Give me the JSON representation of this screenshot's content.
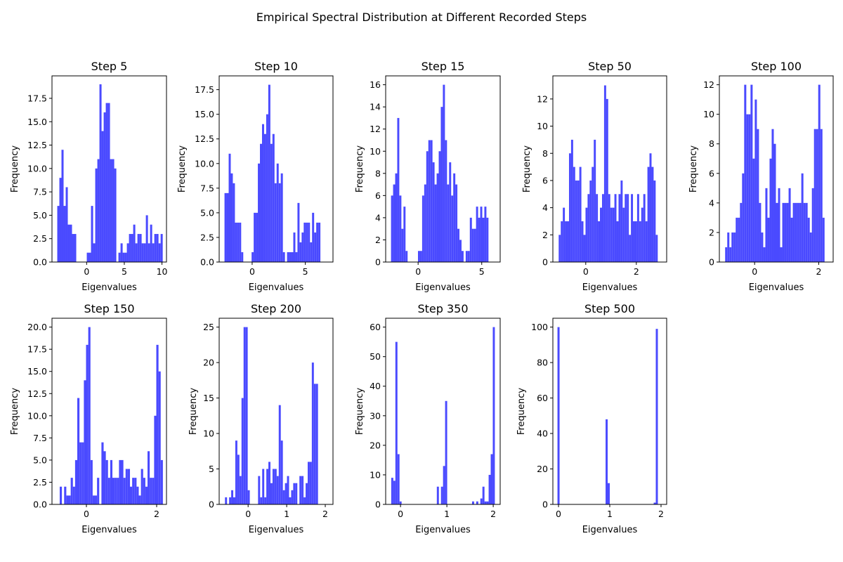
{
  "figure": {
    "title": "Empirical Spectral Distribution at Different Recorded Steps",
    "bar_color": "#4a4aff"
  },
  "chart_data": [
    {
      "type": "bar",
      "title": "Step 5",
      "xlabel": "Eigenvalues",
      "ylabel": "Frequency",
      "xlim": [
        -4.6,
        10.6
      ],
      "ylim": [
        0,
        19.9
      ],
      "xticks": [
        0,
        5,
        10
      ],
      "xtick_labels": [
        "0",
        "5",
        "10"
      ],
      "yticks": [
        0,
        2.5,
        5,
        7.5,
        10,
        12.5,
        15,
        17.5
      ],
      "ytick_labels": [
        "0.0",
        "2.5",
        "5.0",
        "7.5",
        "10.0",
        "12.5",
        "15.0",
        "17.5"
      ],
      "bin_start": -3.9,
      "bin_width": 0.28,
      "counts": [
        6,
        9,
        12,
        6,
        8,
        4,
        4,
        3,
        3,
        0,
        0,
        0,
        0,
        0,
        1,
        1,
        6,
        2,
        10,
        11,
        19,
        14,
        16,
        17,
        17,
        11,
        11,
        10,
        0,
        1,
        2,
        1,
        1,
        2,
        3,
        3,
        4,
        2,
        3,
        3,
        2,
        2,
        5,
        2,
        4,
        2,
        3,
        3,
        2,
        3
      ]
    },
    {
      "type": "bar",
      "title": "Step 10",
      "xlabel": "Eigenvalues",
      "ylabel": "Frequency",
      "xlim": [
        -3.1,
        7.6
      ],
      "ylim": [
        0,
        18.9
      ],
      "xticks": [
        0,
        5
      ],
      "xtick_labels": [
        "0",
        "5"
      ],
      "yticks": [
        0,
        2.5,
        5,
        7.5,
        10,
        12.5,
        15,
        17.5
      ],
      "ytick_labels": [
        "0.0",
        "2.5",
        "5.0",
        "7.5",
        "10.0",
        "12.5",
        "15.0",
        "17.5"
      ],
      "bin_start": -2.6,
      "bin_width": 0.196,
      "counts": [
        7,
        7,
        11,
        9,
        8,
        4,
        4,
        4,
        1,
        0,
        0,
        0,
        0,
        1,
        5,
        5,
        10,
        12,
        14,
        13,
        15,
        18,
        12,
        13,
        8,
        10,
        8,
        9,
        1,
        0,
        1,
        1,
        1,
        3,
        1,
        6,
        2,
        3,
        4,
        4,
        4,
        2,
        5,
        3,
        4,
        4
      ]
    },
    {
      "type": "bar",
      "title": "Step 15",
      "xlabel": "Eigenvalues",
      "ylabel": "Frequency",
      "xlim": [
        -2.55,
        6.45
      ],
      "ylim": [
        0,
        16.8
      ],
      "xticks": [
        0,
        5
      ],
      "xtick_labels": [
        "0",
        "5"
      ],
      "yticks": [
        0,
        2,
        4,
        6,
        8,
        10,
        12,
        14,
        16
      ],
      "ytick_labels": [
        "0",
        "2",
        "4",
        "6",
        "8",
        "10",
        "12",
        "14",
        "16"
      ],
      "bin_start": -2.13,
      "bin_width": 0.163,
      "counts": [
        6,
        7,
        8,
        13,
        6,
        3,
        5,
        1,
        0,
        0,
        0,
        0,
        0,
        1,
        1,
        6,
        7,
        10,
        11,
        11,
        9,
        7,
        8,
        10,
        14,
        16,
        11,
        7,
        9,
        6,
        8,
        7,
        3,
        2,
        1,
        0,
        1,
        1,
        4,
        3,
        3,
        5,
        4,
        5,
        4,
        5,
        4
      ]
    },
    {
      "type": "bar",
      "title": "Step 50",
      "xlabel": "Eigenvalues",
      "ylabel": "Frequency",
      "xlim": [
        -1.3,
        3.2
      ],
      "ylim": [
        0,
        13.7
      ],
      "xticks": [
        0,
        2
      ],
      "xtick_labels": [
        "0",
        "2"
      ],
      "yticks": [
        0,
        2,
        4,
        6,
        8,
        10,
        12
      ],
      "ytick_labels": [
        "0",
        "2",
        "4",
        "6",
        "8",
        "10",
        "12"
      ],
      "bin_start": -1.07,
      "bin_width": 0.0816,
      "counts": [
        2,
        3,
        4,
        3,
        3,
        8,
        9,
        7,
        6,
        6,
        7,
        3,
        2,
        4,
        5,
        6,
        7,
        9,
        5,
        3,
        4,
        5,
        13,
        12,
        5,
        4,
        4,
        5,
        3,
        5,
        6,
        4,
        5,
        5,
        2,
        5,
        3,
        3,
        5,
        3,
        4,
        5,
        3,
        7,
        8,
        7,
        6,
        2
      ]
    },
    {
      "type": "bar",
      "title": "Step 100",
      "xlabel": "Eigenvalues",
      "ylabel": "Frequency",
      "xlim": [
        -1.1,
        2.45
      ],
      "ylim": [
        0,
        12.6
      ],
      "xticks": [
        0,
        2
      ],
      "xtick_labels": [
        "0",
        "2"
      ],
      "yticks": [
        0,
        2,
        4,
        6,
        8,
        10,
        12
      ],
      "ytick_labels": [
        "0",
        "2",
        "4",
        "6",
        "8",
        "10",
        "12"
      ],
      "bin_start": -0.92,
      "bin_width": 0.066,
      "counts": [
        1,
        2,
        1,
        2,
        2,
        3,
        3,
        4,
        6,
        12,
        10,
        10,
        12,
        7,
        11,
        9,
        4,
        2,
        1,
        5,
        3,
        7,
        9,
        8,
        4,
        5,
        1,
        4,
        4,
        4,
        5,
        3,
        4,
        4,
        4,
        4,
        6,
        4,
        4,
        3,
        2,
        5,
        9,
        9,
        12,
        9,
        3
      ]
    },
    {
      "type": "bar",
      "title": "Step 150",
      "xlabel": "Eigenvalues",
      "ylabel": "Frequency",
      "xlim": [
        -0.98,
        2.28
      ],
      "ylim": [
        0,
        21
      ],
      "xticks": [
        0,
        2
      ],
      "xtick_labels": [
        "0",
        "2"
      ],
      "yticks": [
        0,
        2.5,
        5,
        7.5,
        10,
        12.5,
        15,
        17.5,
        20
      ],
      "ytick_labels": [
        "0.0",
        "2.5",
        "5.0",
        "7.5",
        "10.0",
        "12.5",
        "15.0",
        "17.5",
        "20.0"
      ],
      "bin_start": -0.76,
      "bin_width": 0.0625,
      "counts": [
        2,
        0,
        2,
        1,
        1,
        3,
        2,
        5,
        12,
        7,
        7,
        14,
        18,
        20,
        5,
        1,
        1,
        3,
        0,
        7,
        6,
        5,
        3,
        5,
        3,
        3,
        3,
        5,
        5,
        3,
        4,
        4,
        2,
        3,
        3,
        2,
        1,
        4,
        3,
        2,
        6,
        3,
        3,
        10,
        18,
        15,
        5
      ]
    },
    {
      "type": "bar",
      "title": "Step 200",
      "xlabel": "Eigenvalues",
      "ylabel": "Frequency",
      "xlim": [
        -0.75,
        2.2
      ],
      "ylim": [
        0,
        26.25
      ],
      "xticks": [
        0,
        1,
        2
      ],
      "xtick_labels": [
        "0",
        "1",
        "2"
      ],
      "yticks": [
        0,
        5,
        10,
        15,
        20,
        25
      ],
      "ytick_labels": [
        "0",
        "5",
        "10",
        "15",
        "20",
        "25"
      ],
      "bin_start": -0.6,
      "bin_width": 0.0536,
      "counts": [
        1,
        0,
        1,
        2,
        1,
        9,
        7,
        4,
        15,
        25,
        25,
        2,
        0,
        0,
        0,
        0,
        4,
        1,
        5,
        1,
        5,
        6,
        3,
        5,
        5,
        4,
        14,
        9,
        2,
        3,
        4,
        1,
        2,
        3,
        3,
        0,
        4,
        4,
        1,
        3,
        6,
        6,
        20,
        17,
        17
      ]
    },
    {
      "type": "bar",
      "title": "Step 350",
      "xlabel": "Eigenvalues",
      "ylabel": "Frequency",
      "xlim": [
        -0.32,
        2.15
      ],
      "ylim": [
        0,
        63
      ],
      "xticks": [
        0,
        1,
        2
      ],
      "xtick_labels": [
        "0",
        "1",
        "2"
      ],
      "yticks": [
        0,
        10,
        20,
        30,
        40,
        50,
        60
      ],
      "ytick_labels": [
        "0",
        "10",
        "20",
        "30",
        "40",
        "50",
        "60"
      ],
      "bin_start": -0.2,
      "bin_width": 0.0447,
      "counts": [
        9,
        8,
        55,
        17,
        1,
        0,
        0,
        0,
        0,
        0,
        0,
        0,
        0,
        0,
        0,
        0,
        0,
        0,
        0,
        0,
        0,
        0,
        6,
        0,
        6,
        13,
        35,
        0,
        0,
        0,
        0,
        0,
        0,
        0,
        0,
        0,
        0,
        0,
        0,
        1,
        0,
        1,
        0,
        2,
        6,
        1,
        1,
        10,
        17,
        60
      ]
    },
    {
      "type": "bar",
      "title": "Step 500",
      "xlabel": "Eigenvalues",
      "ylabel": "Frequency",
      "xlim": [
        -0.11,
        2.11
      ],
      "ylim": [
        0,
        105
      ],
      "xticks": [
        0,
        1,
        2
      ],
      "xtick_labels": [
        "0",
        "1",
        "2"
      ],
      "yticks": [
        0,
        20,
        40,
        60,
        80,
        100
      ],
      "ytick_labels": [
        "0",
        "20",
        "40",
        "60",
        "80",
        "100"
      ],
      "bin_start": -0.02,
      "bin_width": 0.0408,
      "counts": [
        100,
        0,
        0,
        0,
        0,
        0,
        0,
        0,
        0,
        0,
        0,
        0,
        0,
        0,
        0,
        0,
        0,
        0,
        0,
        0,
        0,
        0,
        0,
        48,
        12,
        0,
        0,
        0,
        0,
        0,
        0,
        0,
        0,
        0,
        0,
        0,
        0,
        0,
        0,
        0,
        0,
        0,
        0,
        0,
        0,
        0,
        1,
        99
      ]
    }
  ]
}
